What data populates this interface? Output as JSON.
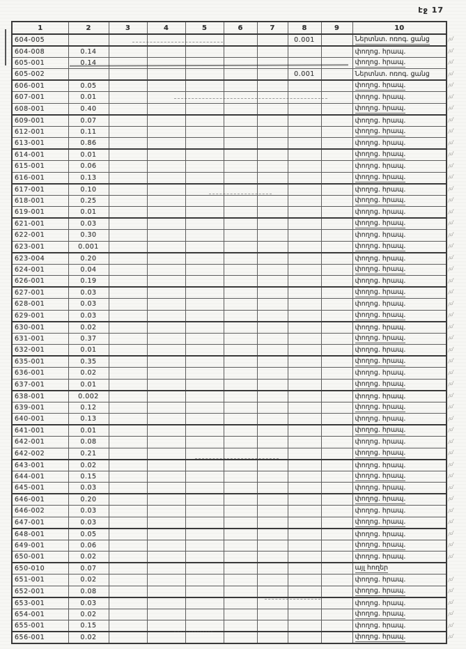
{
  "page": {
    "label": "էջ 17"
  },
  "margin_mark": "յմ",
  "colors": {
    "ink": "#3c3c3c",
    "grid_line": "#5c5c5c",
    "paper": "#f7f7f4"
  },
  "table": {
    "headers": [
      "1",
      "2",
      "3",
      "4",
      "5",
      "6",
      "7",
      "8",
      "9",
      "10"
    ],
    "rows": [
      {
        "code": "604-005",
        "area": "",
        "network": "0.001",
        "land_use": "Ներտնտ. ոռոգ. ցանց",
        "mark": true
      },
      {
        "code": "604-008",
        "area": "0.14",
        "network": "",
        "land_use": "փողոց. հրապ.",
        "mark": true
      },
      {
        "code": "605-001",
        "area": "0.14",
        "network": "",
        "land_use": "փողոց. հրապ.",
        "mark": true
      },
      {
        "code": "605-002",
        "area": "",
        "network": "0.001",
        "land_use": "Ներտնտ. ոռոգ. ցանց",
        "mark": true
      },
      {
        "code": "606-001",
        "area": "0.05",
        "network": "",
        "land_use": "փողոց. հրապ.",
        "mark": true
      },
      {
        "code": "607-001",
        "area": "0.01",
        "network": "",
        "land_use": "փողոց. հրապ.",
        "mark": true
      },
      {
        "code": "608-001",
        "area": "0.40",
        "network": "",
        "land_use": "փողոց. հրապ.",
        "mark": true
      },
      {
        "code": "609-001",
        "area": "0.07",
        "network": "",
        "land_use": "փողոց. հրապ.",
        "mark": true
      },
      {
        "code": "612-001",
        "area": "0.11",
        "network": "",
        "land_use": "փողոց. հրապ.",
        "mark": true
      },
      {
        "code": "613-001",
        "area": "0.86",
        "network": "",
        "land_use": "փողոց. հրապ.",
        "mark": true
      },
      {
        "code": "614-001",
        "area": "0.01",
        "network": "",
        "land_use": "փողոց. հրապ.",
        "mark": true
      },
      {
        "code": "615-001",
        "area": "0.06",
        "network": "",
        "land_use": "փողոց. հրապ.",
        "mark": true
      },
      {
        "code": "616-001",
        "area": "0.13",
        "network": "",
        "land_use": "փողոց. հրապ.",
        "mark": true
      },
      {
        "code": "617-001",
        "area": "0.10",
        "network": "",
        "land_use": "փողոց. հրապ.",
        "mark": true
      },
      {
        "code": "618-001",
        "area": "0.25",
        "network": "",
        "land_use": "փողոց. հրապ.",
        "mark": true
      },
      {
        "code": "619-001",
        "area": "0.01",
        "network": "",
        "land_use": "փողոց. հրապ.",
        "mark": true
      },
      {
        "code": "621-001",
        "area": "0.03",
        "network": "",
        "land_use": "փողոց. հրապ.",
        "mark": true
      },
      {
        "code": "622-001",
        "area": "0.30",
        "network": "",
        "land_use": "փողոց. հրապ.",
        "mark": true
      },
      {
        "code": "623-001",
        "area": "0.001",
        "network": "",
        "land_use": "փողոց. հրապ.",
        "mark": true
      },
      {
        "code": "623-004",
        "area": "0.20",
        "network": "",
        "land_use": "փողոց. հրապ.",
        "mark": true
      },
      {
        "code": "624-001",
        "area": "0.04",
        "network": "",
        "land_use": "փողոց. հրապ.",
        "mark": true
      },
      {
        "code": "626-001",
        "area": "0.19",
        "network": "",
        "land_use": "փողոց. հրապ.",
        "mark": true
      },
      {
        "code": "627-001",
        "area": "0.03",
        "network": "",
        "land_use": "փողոց. հրապ.",
        "mark": true
      },
      {
        "code": "628-001",
        "area": "0.03",
        "network": "",
        "land_use": "փողոց. հրապ.",
        "mark": true
      },
      {
        "code": "629-001",
        "area": "0.03",
        "network": "",
        "land_use": "փողոց. հրապ.",
        "mark": true
      },
      {
        "code": "630-001",
        "area": "0.02",
        "network": "",
        "land_use": "փողոց. հրապ.",
        "mark": true
      },
      {
        "code": "631-001",
        "area": "0.37",
        "network": "",
        "land_use": "փողոց. հրապ.",
        "mark": true
      },
      {
        "code": "632-001",
        "area": "0.01",
        "network": "",
        "land_use": "փողոց. հրապ.",
        "mark": true
      },
      {
        "code": "635-001",
        "area": "0.35",
        "network": "",
        "land_use": "փողոց. հրապ.",
        "mark": true
      },
      {
        "code": "636-001",
        "area": "0.02",
        "network": "",
        "land_use": "փողոց. հրապ.",
        "mark": true
      },
      {
        "code": "637-001",
        "area": "0.01",
        "network": "",
        "land_use": "փողոց. հրապ.",
        "mark": true
      },
      {
        "code": "638-001",
        "area": "0.002",
        "network": "",
        "land_use": "փողոց. հրապ.",
        "mark": true
      },
      {
        "code": "639-001",
        "area": "0.12",
        "network": "",
        "land_use": "փողոց. հրապ.",
        "mark": true
      },
      {
        "code": "640-001",
        "area": "0.13",
        "network": "",
        "land_use": "փողոց. հրապ.",
        "mark": true
      },
      {
        "code": "641-001",
        "area": "0.01",
        "network": "",
        "land_use": "փողոց. հրապ.",
        "mark": true
      },
      {
        "code": "642-001",
        "area": "0.08",
        "network": "",
        "land_use": "փողոց. հրապ.",
        "mark": true
      },
      {
        "code": "642-002",
        "area": "0.21",
        "network": "",
        "land_use": "փողոց. հրապ.",
        "mark": true
      },
      {
        "code": "643-001",
        "area": "0.02",
        "network": "",
        "land_use": "փողոց. հրապ.",
        "mark": true
      },
      {
        "code": "644-001",
        "area": "0.15",
        "network": "",
        "land_use": "փողոց. հրապ.",
        "mark": true
      },
      {
        "code": "645-001",
        "area": "0.03",
        "network": "",
        "land_use": "փողոց. հրապ.",
        "mark": true
      },
      {
        "code": "646-001",
        "area": "0.20",
        "network": "",
        "land_use": "փողոց. հրապ.",
        "mark": true
      },
      {
        "code": "646-002",
        "area": "0.03",
        "network": "",
        "land_use": "փողոց. հրապ.",
        "mark": true
      },
      {
        "code": "647-001",
        "area": "0.03",
        "network": "",
        "land_use": "փողոց. հրապ.",
        "mark": true
      },
      {
        "code": "648-001",
        "area": "0.05",
        "network": "",
        "land_use": "փողոց. հրապ.",
        "mark": true
      },
      {
        "code": "649-001",
        "area": "0.06",
        "network": "",
        "land_use": "փողոց. հրապ.",
        "mark": true
      },
      {
        "code": "650-001",
        "area": "0.02",
        "network": "",
        "land_use": "փողոց. հրապ.",
        "mark": true
      },
      {
        "code": "650-010",
        "area": "0.07",
        "network": "",
        "land_use": "այլ հողեր",
        "mark": false
      },
      {
        "code": "651-001",
        "area": "0.02",
        "network": "",
        "land_use": "փողոց. հրապ.",
        "mark": true
      },
      {
        "code": "652-001",
        "area": "0.08",
        "network": "",
        "land_use": "փողոց. հրապ.",
        "mark": true
      },
      {
        "code": "653-001",
        "area": "0.03",
        "network": "",
        "land_use": "փողոց. հրապ.",
        "mark": true
      },
      {
        "code": "654-001",
        "area": "0.02",
        "network": "",
        "land_use": "փողոց. հրապ.",
        "mark": true
      },
      {
        "code": "655-001",
        "area": "0.15",
        "network": "",
        "land_use": "փողոց. հրապ.",
        "mark": true
      },
      {
        "code": "656-001",
        "area": "0.02",
        "network": "",
        "land_use": "փողոց. հրապ.",
        "mark": true
      }
    ]
  }
}
